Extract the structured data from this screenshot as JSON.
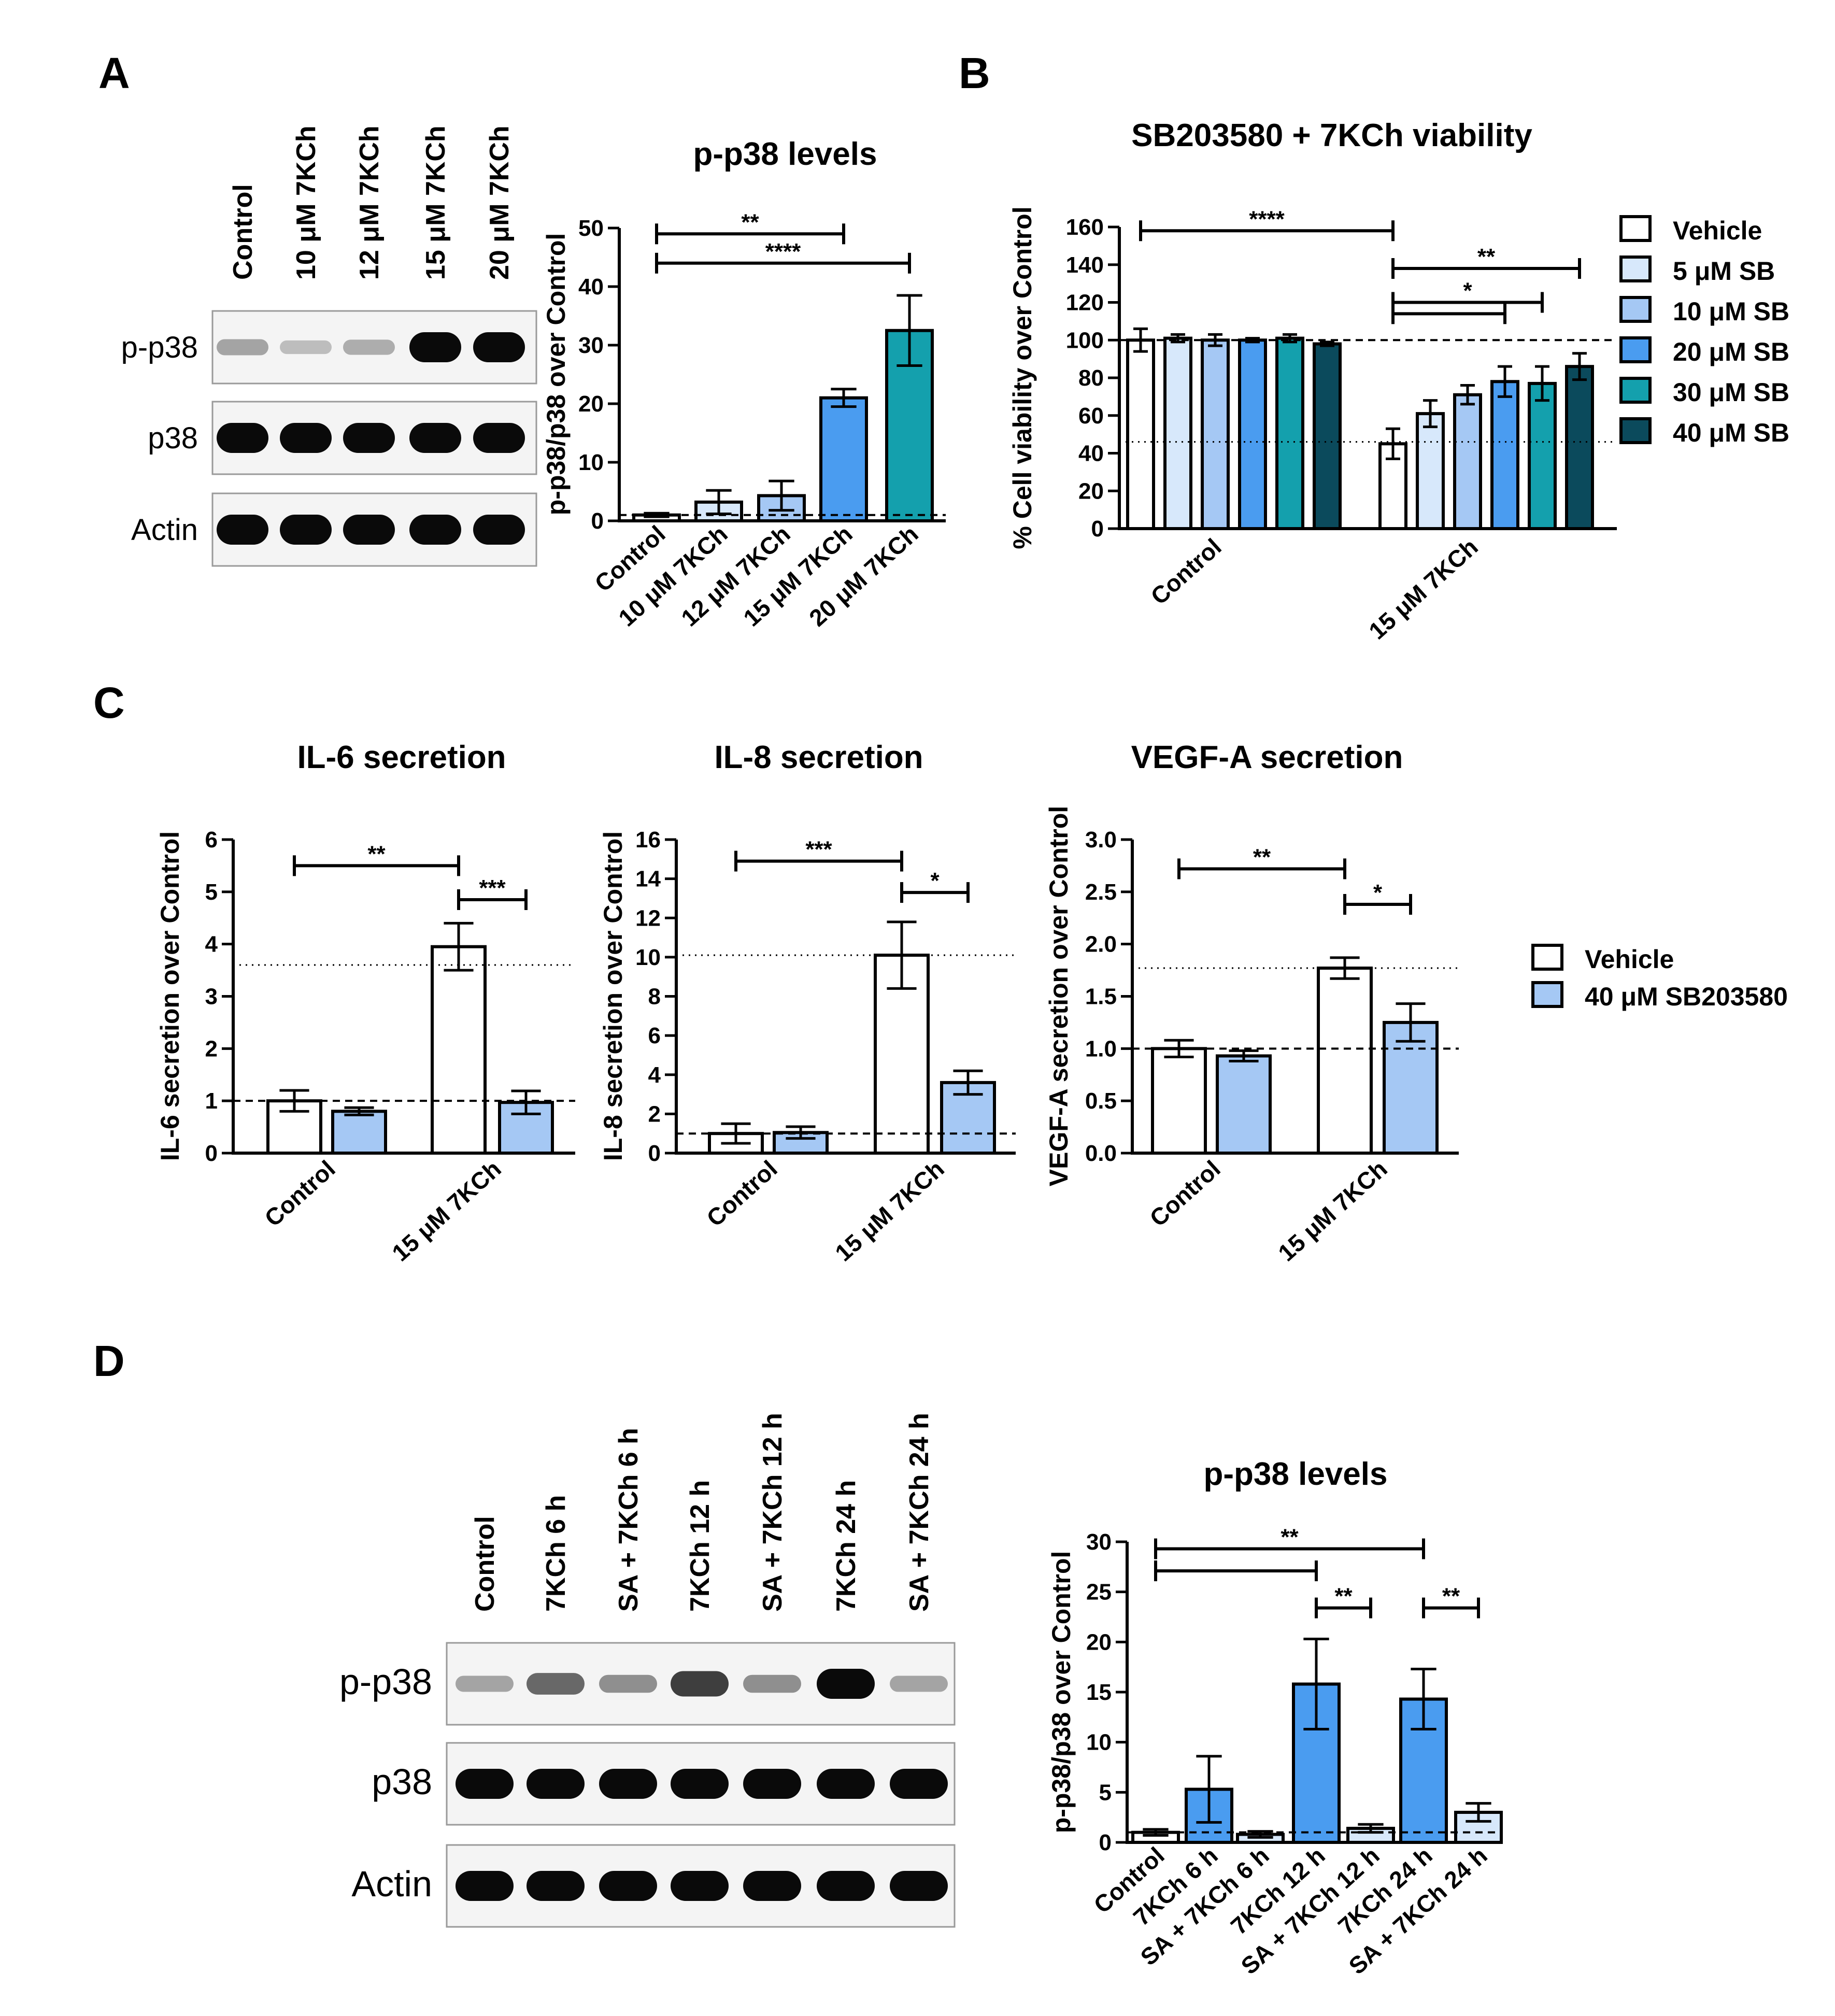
{
  "panels": {
    "a": "A",
    "b": "B",
    "c": "C",
    "d": "D"
  },
  "colors": {
    "white": "#ffffff",
    "pale": "#d7e8fb",
    "light": "#a5c8f4",
    "blue": "#4a9cf0",
    "teal": "#14a0ad",
    "dark": "#0b4a5c"
  },
  "blot_a": {
    "lanes": [
      "Control",
      "10 μM 7KCh",
      "12 μM 7KCh",
      "15 μM 7KCh",
      "20 μM 7KCh"
    ],
    "rows": [
      "p-p38",
      "p38",
      "Actin"
    ],
    "band_intensity": [
      [
        0.25,
        0.12,
        0.2,
        1.0,
        1.0
      ],
      [
        1.0,
        1.0,
        1.0,
        1.0,
        1.0
      ],
      [
        1.0,
        1.0,
        1.0,
        1.0,
        1.0
      ]
    ]
  },
  "blot_d": {
    "lanes": [
      "Control",
      "7KCh 6 h",
      "SA + 7KCh 6 h",
      "7KCh 12 h",
      "SA + 7KCh 12 h",
      "7KCh 24 h",
      "SA + 7KCh 24 h"
    ],
    "rows": [
      "p-p38",
      "p38",
      "Actin"
    ],
    "band_intensity": [
      [
        0.25,
        0.55,
        0.35,
        0.75,
        0.35,
        1.0,
        0.25
      ],
      [
        1.0,
        1.0,
        1.0,
        1.0,
        1.0,
        1.0,
        1.0
      ],
      [
        1.0,
        1.0,
        1.0,
        1.0,
        1.0,
        1.0,
        1.0
      ]
    ]
  },
  "chart_data": [
    {
      "id": "a",
      "type": "bar",
      "title": "p-p38 levels",
      "ylabel": "p-p38/p38 over Control",
      "ylim": [
        0,
        50
      ],
      "yticks": [
        0,
        10,
        20,
        30,
        40,
        50
      ],
      "categories": [
        "Control",
        "10 μM 7KCh",
        "12 μM 7KCh",
        "15 μM 7KCh",
        "20 μM 7KCh"
      ],
      "values": [
        1,
        3.2,
        4.3,
        21,
        32.5
      ],
      "errors": [
        0.3,
        2.0,
        2.5,
        1.5,
        6.0
      ],
      "colors": [
        "white",
        "pale",
        "light",
        "blue",
        "teal"
      ],
      "reference_line": {
        "value": 1,
        "style": "dashed"
      },
      "brackets": [
        {
          "from": 0,
          "to": 3,
          "level": 49,
          "label": "**"
        },
        {
          "from": 0,
          "to": 4,
          "level": 44,
          "label": "****"
        }
      ]
    },
    {
      "id": "b",
      "type": "grouped_bar",
      "title": "SB203580 + 7KCh viability",
      "ylabel": "% Cell viability over Control",
      "ylim": [
        0,
        160
      ],
      "yticks": [
        0,
        20,
        40,
        60,
        80,
        100,
        120,
        140,
        160
      ],
      "groups": [
        "Control",
        "15 μM 7KCh"
      ],
      "series": [
        {
          "name": "Vehicle",
          "color": "white",
          "values": [
            100,
            45
          ],
          "errors": [
            6,
            8
          ]
        },
        {
          "name": "5 μM SB",
          "color": "pale",
          "values": [
            101,
            61
          ],
          "errors": [
            2,
            7
          ]
        },
        {
          "name": "10 μM SB",
          "color": "light",
          "values": [
            100,
            71
          ],
          "errors": [
            3,
            5
          ]
        },
        {
          "name": "20 μM SB",
          "color": "blue",
          "values": [
            100,
            78
          ],
          "errors": [
            1,
            8
          ]
        },
        {
          "name": "30 μM SB",
          "color": "teal",
          "values": [
            101,
            77
          ],
          "errors": [
            2,
            9
          ]
        },
        {
          "name": "40 μM SB",
          "color": "dark",
          "values": [
            98,
            86
          ],
          "errors": [
            1,
            7
          ]
        }
      ],
      "reference_lines": [
        {
          "value": 100,
          "style": "dashed"
        },
        {
          "value": 46,
          "style": "dotted"
        }
      ],
      "brackets": [
        {
          "from": [
            0,
            0
          ],
          "to": [
            1,
            0
          ],
          "level": 158,
          "label": "****"
        },
        {
          "from": [
            1,
            0
          ],
          "to": [
            1,
            5
          ],
          "level": 138,
          "label": "**"
        },
        {
          "from": [
            1,
            0
          ],
          "to": [
            1,
            4
          ],
          "level": 120,
          "label": "*"
        },
        {
          "from": [
            1,
            0
          ],
          "to": [
            1,
            3
          ],
          "level": 114,
          "label": ""
        }
      ]
    },
    {
      "id": "c1",
      "type": "grouped_bar",
      "title": "IL-6 secretion",
      "ylabel": "IL-6 secretion over Control",
      "ylim": [
        0,
        6
      ],
      "yticks": [
        0,
        1,
        2,
        3,
        4,
        5,
        6
      ],
      "groups": [
        "Control",
        "15 μM 7KCh"
      ],
      "series": [
        {
          "name": "Vehicle",
          "color": "white",
          "values": [
            1.0,
            3.95
          ],
          "errors": [
            0.2,
            0.45
          ]
        },
        {
          "name": "40 μM SB203580",
          "color": "light",
          "values": [
            0.8,
            0.97
          ],
          "errors": [
            0.07,
            0.22
          ]
        }
      ],
      "reference_lines": [
        {
          "value": 1,
          "style": "dashed"
        },
        {
          "value": 3.6,
          "style": "dotted"
        }
      ],
      "brackets": [
        {
          "from": [
            0,
            0
          ],
          "to": [
            1,
            0
          ],
          "level": 5.5,
          "label": "**"
        },
        {
          "from": [
            1,
            0
          ],
          "to": [
            1,
            1
          ],
          "level": 4.85,
          "label": "***"
        }
      ]
    },
    {
      "id": "c2",
      "type": "grouped_bar",
      "title": "IL-8 secretion",
      "ylabel": "IL-8 secretion over Control",
      "ylim": [
        0,
        16
      ],
      "yticks": [
        0,
        2,
        4,
        6,
        8,
        10,
        12,
        14,
        16
      ],
      "groups": [
        "Control",
        "15 μM 7KCh"
      ],
      "series": [
        {
          "name": "Vehicle",
          "color": "white",
          "values": [
            1.0,
            10.1
          ],
          "errors": [
            0.5,
            1.7
          ]
        },
        {
          "name": "40 μM SB203580",
          "color": "light",
          "values": [
            1.05,
            3.6
          ],
          "errors": [
            0.3,
            0.6
          ]
        }
      ],
      "reference_lines": [
        {
          "value": 1,
          "style": "dashed"
        },
        {
          "value": 10.1,
          "style": "dotted"
        }
      ],
      "brackets": [
        {
          "from": [
            0,
            0
          ],
          "to": [
            1,
            0
          ],
          "level": 14.9,
          "label": "***"
        },
        {
          "from": [
            1,
            0
          ],
          "to": [
            1,
            1
          ],
          "level": 13.3,
          "label": "*"
        }
      ]
    },
    {
      "id": "c3",
      "type": "grouped_bar",
      "title": "VEGF-A secretion",
      "ylabel": "VEGF-A secretion over Control",
      "ylim": [
        0,
        3
      ],
      "yticks": [
        0.0,
        0.5,
        1.0,
        1.5,
        2.0,
        2.5,
        3.0
      ],
      "groups": [
        "Control",
        "15 μM 7KCh"
      ],
      "series": [
        {
          "name": "Vehicle",
          "color": "white",
          "values": [
            1.0,
            1.77
          ],
          "errors": [
            0.08,
            0.1
          ]
        },
        {
          "name": "40 μM SB203580",
          "color": "light",
          "values": [
            0.93,
            1.25
          ],
          "errors": [
            0.05,
            0.18
          ]
        }
      ],
      "reference_lines": [
        {
          "value": 1,
          "style": "dashed"
        },
        {
          "value": 1.77,
          "style": "dotted"
        }
      ],
      "brackets": [
        {
          "from": [
            0,
            0
          ],
          "to": [
            1,
            0
          ],
          "level": 2.72,
          "label": "**"
        },
        {
          "from": [
            1,
            0
          ],
          "to": [
            1,
            1
          ],
          "level": 2.38,
          "label": "*"
        }
      ]
    },
    {
      "id": "d",
      "type": "bar",
      "title": "p-p38 levels",
      "ylabel": "p-p38/p38 over Control",
      "ylim": [
        0,
        30
      ],
      "yticks": [
        0,
        5,
        10,
        15,
        20,
        25,
        30
      ],
      "categories": [
        "Control",
        "7KCh 6 h",
        "SA + 7KCh 6 h",
        "7KCh 12 h",
        "SA + 7KCh 12 h",
        "7KCh 24 h",
        "SA + 7KCh 24 h"
      ],
      "values": [
        1,
        5.3,
        0.8,
        15.8,
        1.4,
        14.3,
        3.0
      ],
      "errors": [
        0.3,
        3.3,
        0.3,
        4.5,
        0.4,
        3.0,
        0.9
      ],
      "colors": [
        "white",
        "blue",
        "pale",
        "blue",
        "pale",
        "blue",
        "pale"
      ],
      "reference_line": {
        "value": 1,
        "style": "dashed"
      },
      "brackets": [
        {
          "from": 0,
          "to": 5,
          "level": 29.3,
          "label": "**"
        },
        {
          "from": 0,
          "to": 3,
          "level": 27.1,
          "label": ""
        },
        {
          "from": 3,
          "to": 4,
          "level": 23.4,
          "label": "**"
        },
        {
          "from": 5,
          "to": 6,
          "level": 23.4,
          "label": "**"
        }
      ]
    }
  ],
  "legends": {
    "b": {
      "entries": [
        {
          "label": "Vehicle",
          "color": "white"
        },
        {
          "label": "5 μM SB",
          "color": "pale"
        },
        {
          "label": "10 μM SB",
          "color": "light"
        },
        {
          "label": "20 μM SB",
          "color": "blue"
        },
        {
          "label": "30 μM SB",
          "color": "teal"
        },
        {
          "label": "40 μM SB",
          "color": "dark"
        }
      ]
    },
    "c": {
      "entries": [
        {
          "label": "Vehicle",
          "color": "white"
        },
        {
          "label": "40 μM SB203580",
          "color": "light"
        }
      ]
    }
  }
}
